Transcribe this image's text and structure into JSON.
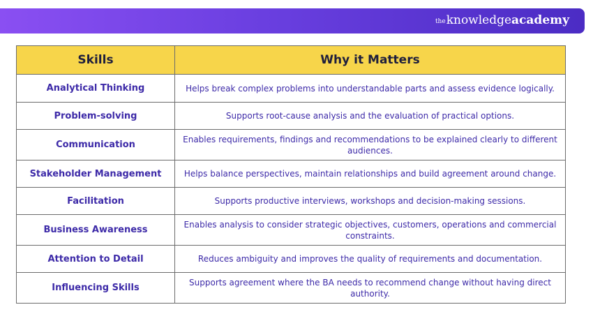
{
  "brand": {
    "prefix": "the",
    "name_light": "knowledge",
    "name_bold": "academy",
    "gradient": [
      "#8a4ff2",
      "#4b2cc4"
    ]
  },
  "table": {
    "headers": [
      "Skills",
      "Why it Matters"
    ],
    "header_color": "#f7d54a",
    "text_color": "#3d2aa8",
    "rows": [
      {
        "skill": "Analytical Thinking",
        "why": "Helps break complex problems into understandable parts and assess evidence logically."
      },
      {
        "skill": "Problem-solving",
        "why": "Supports root-cause analysis and the evaluation of practical options."
      },
      {
        "skill": "Communication",
        "why": "Enables requirements, findings and recommendations to be explained clearly to different audiences."
      },
      {
        "skill": "Stakeholder Management",
        "why": "Helps balance perspectives, maintain relationships and build agreement around change."
      },
      {
        "skill": "Facilitation",
        "why": "Supports productive interviews, workshops and decision-making sessions."
      },
      {
        "skill": "Business Awareness",
        "why": "Enables analysis to consider strategic objectives, customers, operations and commercial constraints."
      },
      {
        "skill": "Attention to Detail",
        "why": "Reduces ambiguity and improves the quality of requirements and documentation."
      },
      {
        "skill": "Influencing Skills",
        "why": "Supports agreement where the BA needs to recommend change without having direct authority."
      }
    ]
  }
}
